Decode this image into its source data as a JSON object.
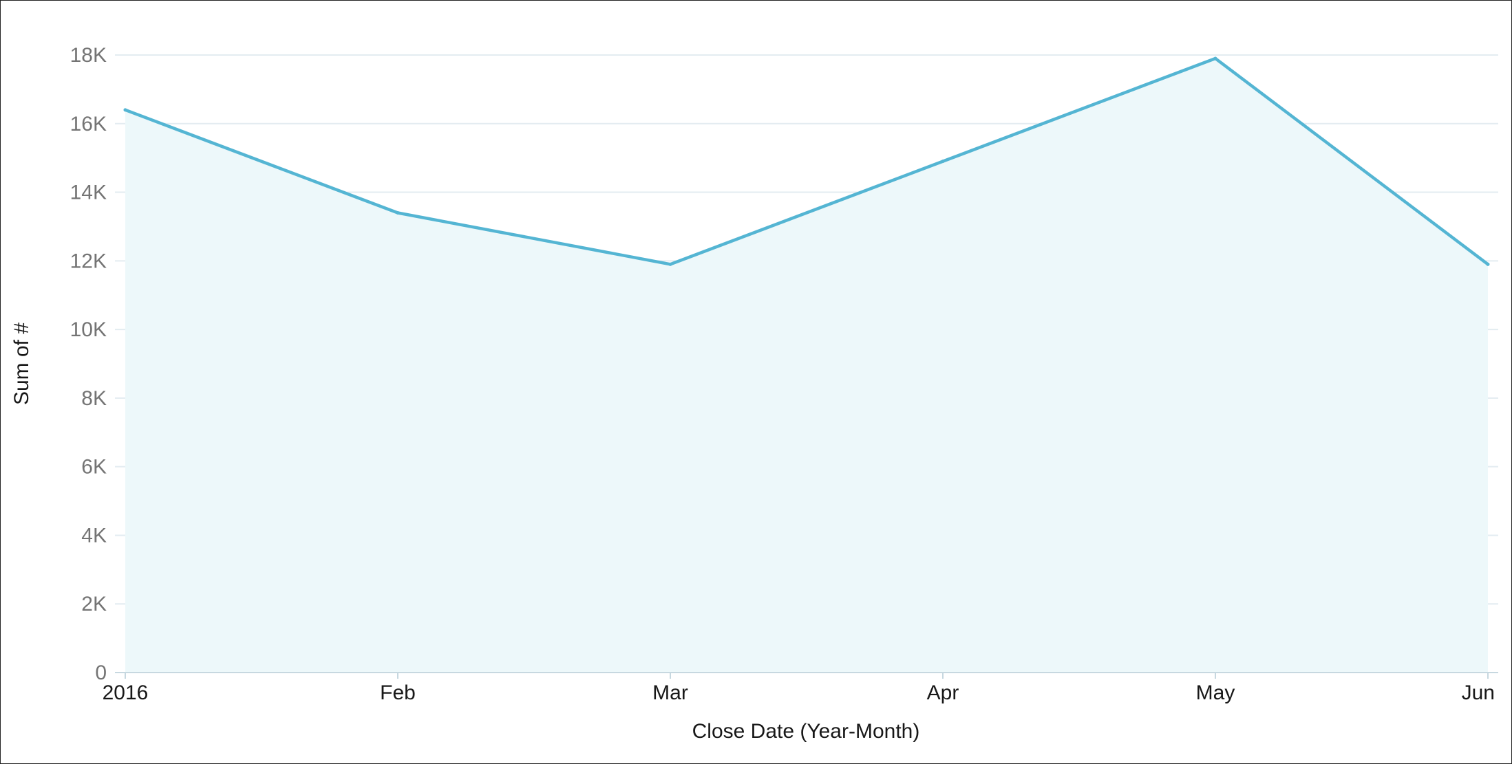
{
  "chart_data": {
    "type": "area",
    "title": "",
    "xlabel": "Close Date (Year-Month)",
    "ylabel": "Sum of #",
    "categories": [
      "2016",
      "Feb",
      "Mar",
      "Apr",
      "May",
      "Jun"
    ],
    "series": [
      {
        "values": [
          16400,
          13400,
          11900,
          14900,
          17900,
          11900
        ]
      }
    ],
    "ylim": [
      0,
      18000
    ],
    "y_ticks": [
      {
        "value": 0,
        "label": "0"
      },
      {
        "value": 2000,
        "label": "2K"
      },
      {
        "value": 4000,
        "label": "4K"
      },
      {
        "value": 6000,
        "label": "6K"
      },
      {
        "value": 8000,
        "label": "8K"
      },
      {
        "value": 10000,
        "label": "10K"
      },
      {
        "value": 12000,
        "label": "12K"
      },
      {
        "value": 14000,
        "label": "14K"
      },
      {
        "value": 16000,
        "label": "16K"
      },
      {
        "value": 18000,
        "label": "18K"
      }
    ],
    "grid": true,
    "legend": "none",
    "colors": {
      "line": "#54b5d3",
      "fill": "#edf8fa",
      "grid": "#e3ecf1",
      "axis": "#c7d8e0"
    }
  }
}
